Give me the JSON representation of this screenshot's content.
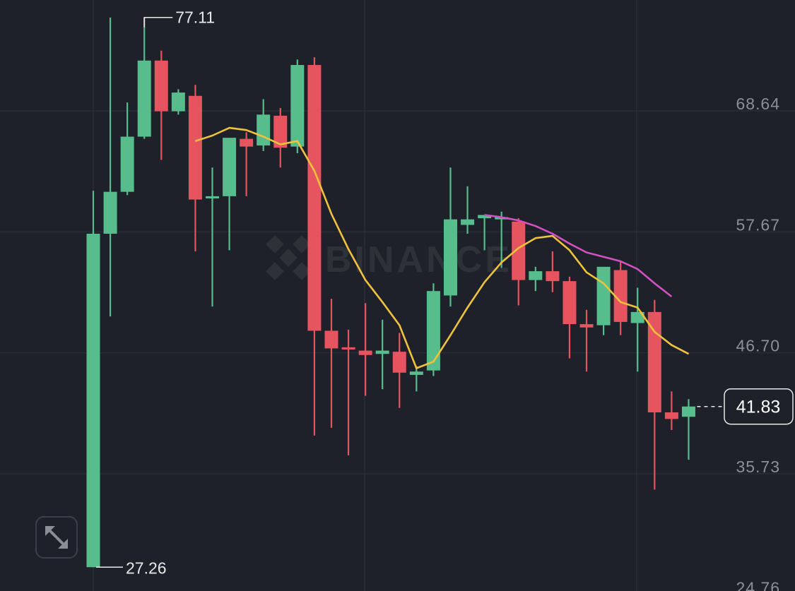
{
  "chart_data": {
    "type": "candlestick",
    "y_ticks": [
      "68.64",
      "57.67",
      "46.70",
      "35.73",
      "24.76"
    ],
    "ylim": [
      24.76,
      79.6
    ],
    "high_label": "77.11",
    "low_label": "27.26",
    "last_price_label": "41.83",
    "watermark": "BINANCE",
    "colors": {
      "up": "#58bd8c",
      "down": "#e5545f",
      "ma_short": "#f0c23b",
      "ma_long": "#d350c2",
      "grid": "#2d313b",
      "axis_text": "#8a8f98",
      "text": "#e8e8e8"
    },
    "candles": [
      {
        "o": 27.26,
        "h": 61.4,
        "l": 27.26,
        "c": 57.5
      },
      {
        "o": 57.5,
        "h": 77.1,
        "l": 50.0,
        "c": 61.3
      },
      {
        "o": 61.3,
        "h": 69.4,
        "l": 61.0,
        "c": 66.3
      },
      {
        "o": 66.3,
        "h": 77.11,
        "l": 66.1,
        "c": 73.2
      },
      {
        "o": 73.2,
        "h": 74.1,
        "l": 64.2,
        "c": 68.6
      },
      {
        "o": 68.6,
        "h": 70.6,
        "l": 68.3,
        "c": 70.3
      },
      {
        "o": 70.0,
        "h": 71.0,
        "l": 55.9,
        "c": 60.6
      },
      {
        "o": 60.7,
        "h": 63.5,
        "l": 50.9,
        "c": 60.9
      },
      {
        "o": 60.9,
        "h": 66.0,
        "l": 56.0,
        "c": 66.2
      },
      {
        "o": 66.1,
        "h": 66.7,
        "l": 60.9,
        "c": 65.4
      },
      {
        "o": 65.5,
        "h": 69.7,
        "l": 65.0,
        "c": 68.3
      },
      {
        "o": 68.2,
        "h": 68.9,
        "l": 63.5,
        "c": 65.3
      },
      {
        "o": 65.4,
        "h": 73.3,
        "l": 64.8,
        "c": 72.8
      },
      {
        "o": 72.8,
        "h": 73.5,
        "l": 39.2,
        "c": 48.7
      },
      {
        "o": 48.7,
        "h": 51.6,
        "l": 39.9,
        "c": 47.1
      },
      {
        "o": 47.2,
        "h": 48.8,
        "l": 37.4,
        "c": 47.0
      },
      {
        "o": 46.9,
        "h": 51.2,
        "l": 42.8,
        "c": 46.5
      },
      {
        "o": 46.6,
        "h": 49.7,
        "l": 43.4,
        "c": 46.9
      },
      {
        "o": 46.8,
        "h": 48.5,
        "l": 41.7,
        "c": 44.9
      },
      {
        "o": 44.7,
        "h": 45.5,
        "l": 43.2,
        "c": 45.0
      },
      {
        "o": 45.1,
        "h": 53.0,
        "l": 44.6,
        "c": 52.3
      },
      {
        "o": 51.9,
        "h": 63.5,
        "l": 50.9,
        "c": 58.8
      },
      {
        "o": 58.3,
        "h": 61.8,
        "l": 57.5,
        "c": 58.8
      },
      {
        "o": 58.9,
        "h": 59.2,
        "l": 56.0,
        "c": 59.2
      },
      {
        "o": 58.8,
        "h": 59.5,
        "l": 54.4,
        "c": 59.0
      },
      {
        "o": 58.6,
        "h": 58.9,
        "l": 51.0,
        "c": 53.3
      },
      {
        "o": 53.3,
        "h": 54.5,
        "l": 52.3,
        "c": 54.1
      },
      {
        "o": 54.1,
        "h": 55.9,
        "l": 52.2,
        "c": 53.2
      },
      {
        "o": 53.2,
        "h": 53.6,
        "l": 46.2,
        "c": 49.3
      },
      {
        "o": 49.3,
        "h": 50.6,
        "l": 45.0,
        "c": 49.0
      },
      {
        "o": 49.2,
        "h": 54.4,
        "l": 48.3,
        "c": 54.5
      },
      {
        "o": 54.2,
        "h": 55.0,
        "l": 48.3,
        "c": 49.5
      },
      {
        "o": 49.4,
        "h": 52.6,
        "l": 45.0,
        "c": 50.4
      },
      {
        "o": 50.4,
        "h": 51.5,
        "l": 34.3,
        "c": 41.3
      },
      {
        "o": 41.3,
        "h": 43.2,
        "l": 39.7,
        "c": 40.7
      },
      {
        "o": 40.9,
        "h": 42.5,
        "l": 37.0,
        "c": 41.83
      }
    ],
    "ma_short": [
      {
        "i": 6,
        "v": 65.9
      },
      {
        "i": 7,
        "v": 66.4
      },
      {
        "i": 8,
        "v": 67.1
      },
      {
        "i": 9,
        "v": 66.9
      },
      {
        "i": 10,
        "v": 66.3
      },
      {
        "i": 11,
        "v": 65.6
      },
      {
        "i": 12,
        "v": 65.9
      },
      {
        "i": 13,
        "v": 63.2
      },
      {
        "i": 14,
        "v": 59.3
      },
      {
        "i": 15,
        "v": 56.1
      },
      {
        "i": 16,
        "v": 53.3
      },
      {
        "i": 17,
        "v": 51.3
      },
      {
        "i": 18,
        "v": 49.2
      },
      {
        "i": 19,
        "v": 45.3
      },
      {
        "i": 20,
        "v": 45.9
      },
      {
        "i": 21,
        "v": 48.3
      },
      {
        "i": 22,
        "v": 50.8
      },
      {
        "i": 23,
        "v": 53.1
      },
      {
        "i": 24,
        "v": 54.9
      },
      {
        "i": 25,
        "v": 56.2
      },
      {
        "i": 26,
        "v": 57.1
      },
      {
        "i": 27,
        "v": 57.3
      },
      {
        "i": 28,
        "v": 56.0
      },
      {
        "i": 29,
        "v": 54.0
      },
      {
        "i": 30,
        "v": 53.0
      },
      {
        "i": 31,
        "v": 51.3
      },
      {
        "i": 32,
        "v": 50.8
      },
      {
        "i": 33,
        "v": 48.6
      },
      {
        "i": 34,
        "v": 47.4
      },
      {
        "i": 35,
        "v": 46.6
      }
    ],
    "ma_long": [
      {
        "i": 23,
        "v": 59.2
      },
      {
        "i": 24,
        "v": 59.0
      },
      {
        "i": 25,
        "v": 58.7
      },
      {
        "i": 26,
        "v": 58.2
      },
      {
        "i": 27,
        "v": 57.5
      },
      {
        "i": 28,
        "v": 56.6
      },
      {
        "i": 29,
        "v": 55.8
      },
      {
        "i": 30,
        "v": 55.4
      },
      {
        "i": 31,
        "v": 55.0
      },
      {
        "i": 32,
        "v": 54.3
      },
      {
        "i": 33,
        "v": 53.0
      },
      {
        "i": 34,
        "v": 51.8
      }
    ]
  },
  "ui": {
    "expand_button_icon": "expand-arrows-icon"
  }
}
